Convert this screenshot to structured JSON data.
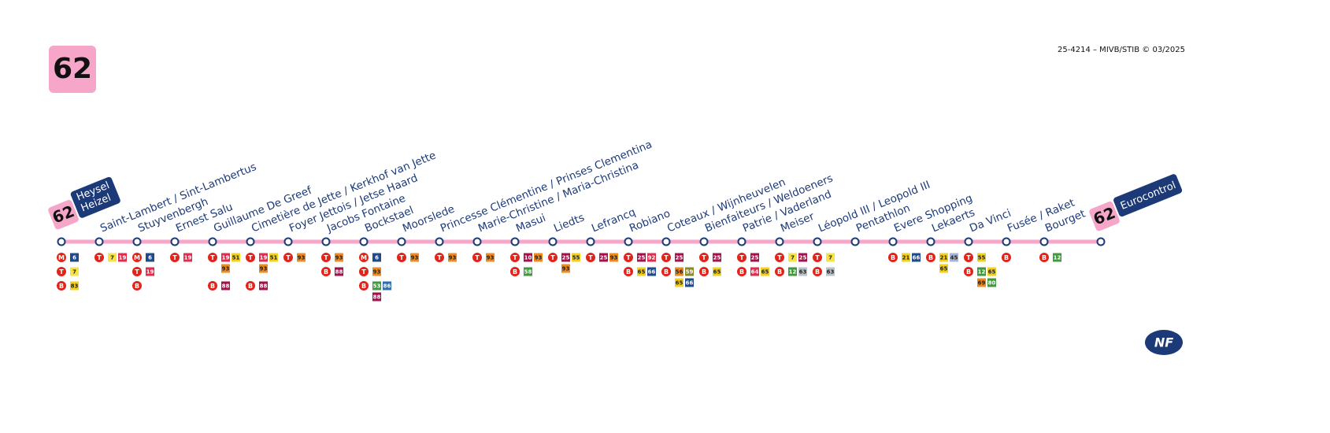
{
  "header": {
    "line": "62",
    "code": "25-4214 – MIVB/STIB © 03/2025"
  },
  "start_terminus": {
    "line": "62",
    "name_lines": [
      "Heysel",
      "Heizel"
    ]
  },
  "end_terminus": {
    "line": "62",
    "name": "Eurocontrol"
  },
  "logo": "NF",
  "line_colors": {
    "6": "#1f4a8c",
    "7": "#f7e443",
    "10": "#a3124a",
    "12": "#3e9a3a",
    "19": "#de2d4f",
    "21": "#f2d01c",
    "25": "#a3124a",
    "45": "#a8b4d4",
    "51": "#f2d01c",
    "53": "#3e9a3a",
    "55": "#f2d01c",
    "56": "#ef8a1c",
    "58": "#3e9a3a",
    "59": "#8a8a2a",
    "63": "#b8c2c8",
    "64": "#de2d4f",
    "65": "#f2d01c",
    "66": "#1f4a8c",
    "69": "#ef8a1c",
    "80": "#3e9a3a",
    "83": "#f2d01c",
    "86": "#2d6fb5",
    "88": "#a3124a",
    "92": "#de2d4f",
    "93": "#ef8a1c"
  },
  "stops": [
    {
      "name": null,
      "connections": [
        {
          "mode": "M",
          "lines": [
            "6"
          ]
        },
        {
          "mode": "T",
          "lines": [
            "7"
          ]
        },
        {
          "mode": "B",
          "lines": [
            "83"
          ]
        }
      ]
    },
    {
      "name": "Saint-Lambert / Sint-Lambertus",
      "connections": [
        {
          "mode": "T",
          "lines": [
            "7",
            "19"
          ]
        }
      ]
    },
    {
      "name": "Stuyvenbergh",
      "connections": [
        {
          "mode": "M",
          "lines": [
            "6"
          ]
        },
        {
          "mode": "T",
          "lines": [
            "19"
          ]
        },
        {
          "mode": "B",
          "lines": []
        }
      ]
    },
    {
      "name": "Ernest Salu",
      "connections": [
        {
          "mode": "T",
          "lines": [
            "19"
          ]
        }
      ]
    },
    {
      "name": "Guillaume De Greef",
      "connections": [
        {
          "mode": "T",
          "lines": [
            "19",
            "51",
            "93"
          ]
        },
        {
          "mode": "B",
          "lines": [
            "88"
          ]
        }
      ]
    },
    {
      "name": "Cimetière de Jette / Kerkhof van Jette",
      "connections": [
        {
          "mode": "T",
          "lines": [
            "19",
            "51",
            "93"
          ]
        },
        {
          "mode": "B",
          "lines": [
            "88"
          ]
        }
      ]
    },
    {
      "name": "Foyer Jettois / Jetse Haard",
      "connections": [
        {
          "mode": "T",
          "lines": [
            "93"
          ]
        }
      ]
    },
    {
      "name": "Jacobs Fontaine",
      "connections": [
        {
          "mode": "T",
          "lines": [
            "93"
          ]
        },
        {
          "mode": "B",
          "lines": [
            "88"
          ]
        }
      ]
    },
    {
      "name": "Bockstael",
      "connections": [
        {
          "mode": "M",
          "lines": [
            "6"
          ]
        },
        {
          "mode": "T",
          "lines": [
            "93"
          ]
        },
        {
          "mode": "B",
          "lines": [
            "53",
            "86",
            "88"
          ]
        }
      ]
    },
    {
      "name": "Moorslede",
      "connections": [
        {
          "mode": "T",
          "lines": [
            "93"
          ]
        }
      ]
    },
    {
      "name": "Princesse Clémentine / Prinses Clementina",
      "connections": [
        {
          "mode": "T",
          "lines": [
            "93"
          ]
        }
      ]
    },
    {
      "name": "Marie-Christine / Maria-Christina",
      "connections": [
        {
          "mode": "T",
          "lines": [
            "93"
          ]
        }
      ]
    },
    {
      "name": "Masui",
      "connections": [
        {
          "mode": "T",
          "lines": [
            "10",
            "93"
          ]
        },
        {
          "mode": "B",
          "lines": [
            "58"
          ]
        }
      ]
    },
    {
      "name": "Liedts",
      "connections": [
        {
          "mode": "T",
          "lines": [
            "25",
            "55",
            "93"
          ]
        }
      ]
    },
    {
      "name": "Lefrancq",
      "connections": [
        {
          "mode": "T",
          "lines": [
            "25",
            "93"
          ]
        }
      ]
    },
    {
      "name": "Robiano",
      "connections": [
        {
          "mode": "T",
          "lines": [
            "25",
            "92"
          ]
        },
        {
          "mode": "B",
          "lines": [
            "65",
            "66"
          ]
        }
      ]
    },
    {
      "name": "Coteaux / Wijnheuvelen",
      "connections": [
        {
          "mode": "T",
          "lines": [
            "25"
          ]
        },
        {
          "mode": "B",
          "lines": [
            "56",
            "59",
            "65",
            "66"
          ]
        }
      ]
    },
    {
      "name": "Bienfaiteurs / Weldoeners",
      "connections": [
        {
          "mode": "T",
          "lines": [
            "25"
          ]
        },
        {
          "mode": "B",
          "lines": [
            "65"
          ]
        }
      ]
    },
    {
      "name": "Patrie / Vaderland",
      "connections": [
        {
          "mode": "T",
          "lines": [
            "25"
          ]
        },
        {
          "mode": "B",
          "lines": [
            "64",
            "65"
          ]
        }
      ]
    },
    {
      "name": "Meiser",
      "connections": [
        {
          "mode": "T",
          "lines": [
            "7",
            "25"
          ]
        },
        {
          "mode": "B",
          "lines": [
            "12",
            "63"
          ]
        }
      ]
    },
    {
      "name": "Léopold III / Leopold III",
      "connections": [
        {
          "mode": "T",
          "lines": [
            "7"
          ]
        },
        {
          "mode": "B",
          "lines": [
            "63"
          ]
        }
      ]
    },
    {
      "name": "Pentathlon",
      "connections": []
    },
    {
      "name": "Evere Shopping",
      "connections": [
        {
          "mode": "B",
          "lines": [
            "21",
            "66"
          ]
        }
      ]
    },
    {
      "name": "Lekaerts",
      "connections": [
        {
          "mode": "B",
          "lines": [
            "21",
            "45",
            "65"
          ]
        }
      ]
    },
    {
      "name": "Da Vinci",
      "connections": [
        {
          "mode": "T",
          "lines": [
            "55"
          ]
        },
        {
          "mode": "B",
          "lines": [
            "12",
            "65",
            "69",
            "80"
          ]
        }
      ]
    },
    {
      "name": "Fusée / Raket",
      "connections": [
        {
          "mode": "B",
          "lines": []
        }
      ]
    },
    {
      "name": "Bourget",
      "connections": [
        {
          "mode": "B",
          "lines": [
            "12"
          ]
        }
      ]
    },
    {
      "name": null,
      "connections": []
    }
  ]
}
